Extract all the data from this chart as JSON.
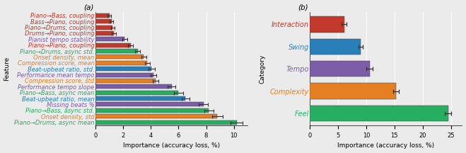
{
  "panel_a": {
    "features": [
      "Piano→Bass, coupling",
      "Bass→Piano, coupling",
      "Piano→Drums, coupling",
      "Drums→Piano, coupling",
      "Pianist tempo stability",
      "Piano→Piano, coupling",
      "Piano→Drums, async std.",
      "Onset density, mean",
      "Compression score, mean",
      "Beat-upbeat ratio, std.",
      "Performance mean tempo",
      "Compression score, std",
      "Performance tempo slope",
      "Piano→Bass, async mean",
      "Beat-upbeat ratio, mean",
      "Missing beats %",
      "Piano→Bass, async std.",
      "Onset density, std",
      "Piano→Drums, async mean"
    ],
    "values": [
      1.0,
      1.15,
      1.25,
      1.35,
      2.1,
      2.55,
      3.05,
      3.5,
      3.75,
      4.05,
      4.2,
      4.35,
      5.5,
      6.0,
      6.5,
      7.8,
      8.2,
      8.8,
      10.2
    ],
    "errors": [
      0.12,
      0.12,
      0.13,
      0.15,
      0.18,
      0.18,
      0.18,
      0.2,
      0.18,
      0.22,
      0.22,
      0.2,
      0.28,
      0.32,
      0.28,
      0.32,
      0.32,
      0.38,
      0.42
    ],
    "colors": [
      "#c0392b",
      "#c0392b",
      "#c0392b",
      "#c0392b",
      "#7b5ea7",
      "#c0392b",
      "#27ae60",
      "#e67e22",
      "#e67e22",
      "#2980b9",
      "#7b5ea7",
      "#e67e22",
      "#7b5ea7",
      "#27ae60",
      "#2980b9",
      "#7b5ea7",
      "#27ae60",
      "#e67e22",
      "#27ae60"
    ],
    "text_colors": [
      "#c0392b",
      "#c0392b",
      "#c0392b",
      "#c0392b",
      "#7b5ea7",
      "#c0392b",
      "#27ae60",
      "#e67e22",
      "#e67e22",
      "#2980b9",
      "#7b5ea7",
      "#e67e22",
      "#7b5ea7",
      "#27ae60",
      "#2980b9",
      "#7b5ea7",
      "#27ae60",
      "#e67e22",
      "#27ae60"
    ],
    "xlabel": "Importance (accuracy loss, %)",
    "ylabel": "Feature",
    "xlim": [
      0,
      11.0
    ],
    "xticks": [
      0,
      2,
      4,
      6,
      8,
      10
    ]
  },
  "panel_b": {
    "categories": [
      "Interaction",
      "Swing",
      "Tempo",
      "Complexity",
      "Feel"
    ],
    "values": [
      6.1,
      9.0,
      10.6,
      15.3,
      24.5
    ],
    "errors": [
      0.45,
      0.38,
      0.55,
      0.48,
      0.55
    ],
    "colors": [
      "#c0392b",
      "#2980b9",
      "#7b5ea7",
      "#e67e22",
      "#27ae60"
    ],
    "text_colors": [
      "#c0392b",
      "#2980b9",
      "#7b5ea7",
      "#e67e22",
      "#27ae60"
    ],
    "xlabel": "Importance (accuracy loss, %)",
    "ylabel": "Category",
    "xlim": [
      0,
      27
    ],
    "xticks": [
      0,
      5,
      10,
      15,
      20,
      25
    ]
  },
  "label_a": "(a)",
  "label_b": "(b)",
  "bar_height": 0.72,
  "background_color": "#ebebeb",
  "grid_color": "#ffffff",
  "fontsize": 6.5,
  "tick_fontsize": 6.0,
  "label_fontsize": 7.5
}
